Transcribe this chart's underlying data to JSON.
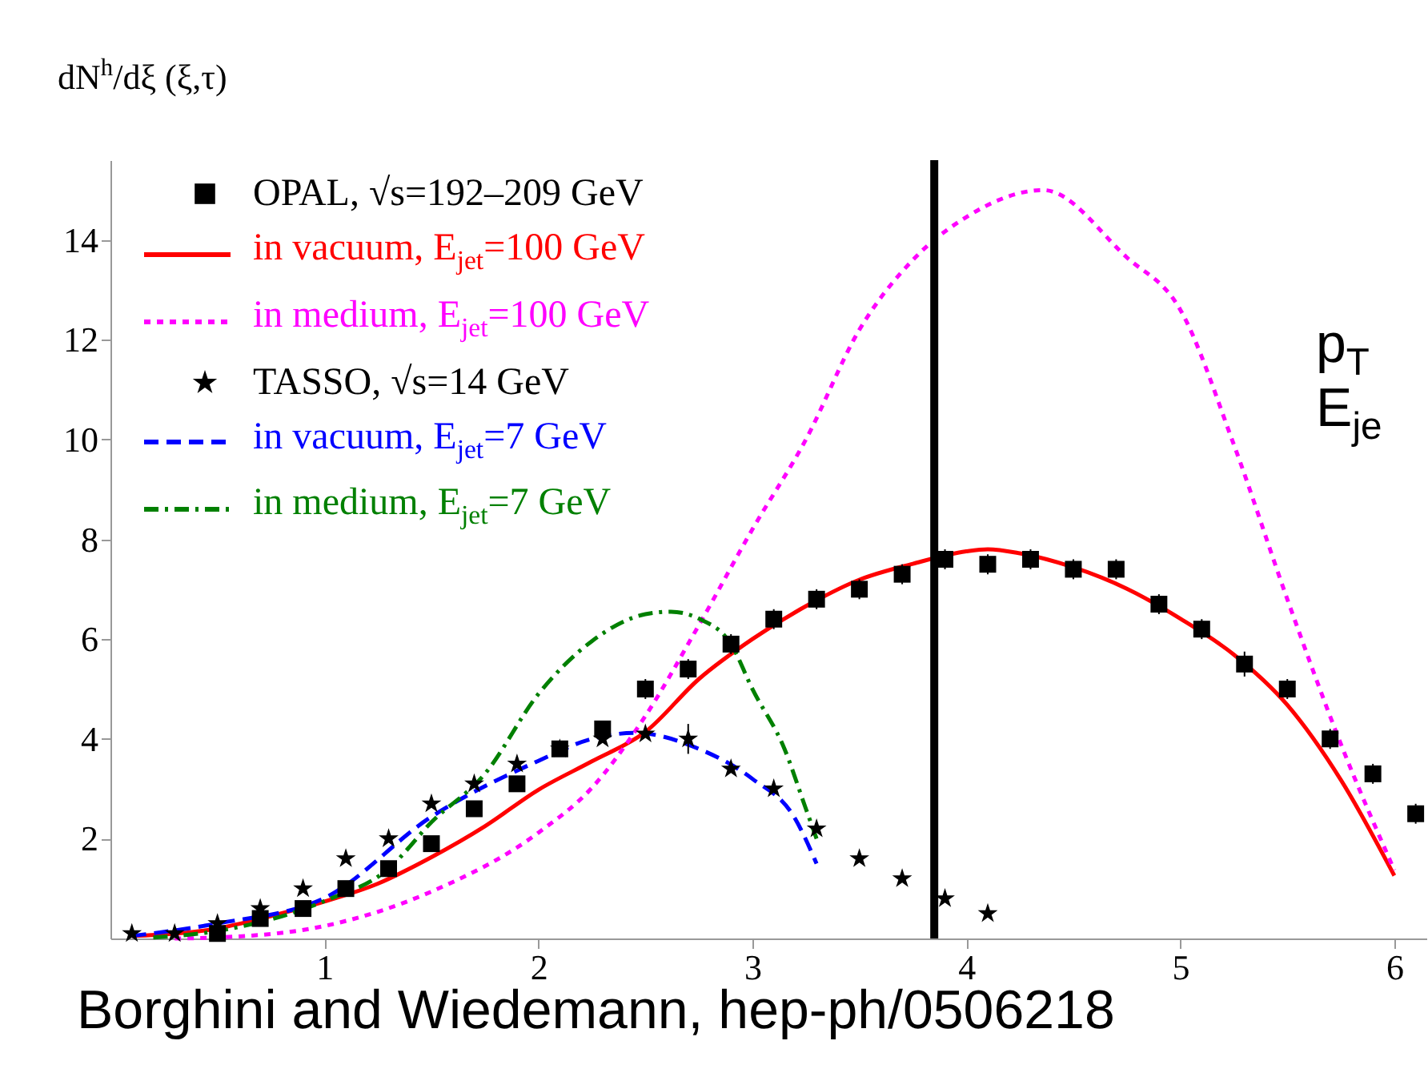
{
  "chart_data": {
    "type": "line",
    "ylabel": "dN$^{h}$/dξ (ξ,τ)",
    "xlim": [
      0,
      6.15
    ],
    "ylim": [
      0,
      15.6
    ],
    "xticks": [
      1,
      2,
      3,
      4,
      5,
      6
    ],
    "yticks": [
      2,
      4,
      6,
      8,
      10,
      12,
      14
    ],
    "grid": false,
    "legend": "top left",
    "ref_lines": [
      {
        "axis": "x",
        "value": 3.85,
        "color": "#000000"
      }
    ],
    "annotations": [
      "p$_{T}$",
      "E$_{je}$",
      "Borghini and Wiedemann, hep-ph/0506218"
    ],
    "series": [
      {
        "type": "scatter",
        "name": "OPAL, √s=192–209 GeV",
        "color": "#000000",
        "marker": "square",
        "x": [
          0.5,
          0.7,
          0.9,
          1.1,
          1.3,
          1.5,
          1.7,
          1.9,
          2.1,
          2.3,
          2.5,
          2.7,
          2.9,
          3.1,
          3.3,
          3.5,
          3.7,
          3.9,
          4.1,
          4.3,
          4.5,
          4.7,
          4.9,
          5.1,
          5.3,
          5.5,
          5.7,
          5.9,
          6.1
        ],
        "values": [
          0.1,
          0.4,
          0.6,
          1.0,
          1.4,
          1.9,
          2.6,
          3.1,
          3.8,
          4.2,
          5.0,
          5.4,
          5.9,
          6.4,
          6.8,
          7.0,
          7.3,
          7.6,
          7.5,
          7.6,
          7.4,
          7.4,
          6.7,
          6.2,
          5.5,
          5.0,
          4.0,
          3.3,
          2.5
        ],
        "errors": [
          null,
          null,
          null,
          null,
          null,
          null,
          null,
          null,
          null,
          null,
          0.2,
          0.2,
          0.2,
          0.2,
          0.2,
          0.2,
          0.2,
          0.2,
          0.2,
          0.2,
          0.2,
          0.2,
          0.2,
          0.2,
          0.25,
          0.2,
          0.2,
          0.2,
          0.2
        ]
      },
      {
        "name": "in vacuum, E$_{jet}$=100 GeV",
        "color": "#ff0000",
        "line_style": "solid",
        "x": [
          0.1,
          0.5,
          0.75,
          1,
          1.25,
          1.5,
          1.75,
          2,
          2.25,
          2.5,
          2.75,
          3,
          3.25,
          3.5,
          3.75,
          4,
          4.1,
          4.25,
          4.5,
          4.75,
          5,
          5.25,
          5.5,
          5.75,
          6
        ],
        "values": [
          0.05,
          0.2,
          0.45,
          0.74,
          1.1,
          1.63,
          2.25,
          2.98,
          3.55,
          4.14,
          5.2,
          6.0,
          6.66,
          7.19,
          7.51,
          7.76,
          7.8,
          7.72,
          7.44,
          7.01,
          6.41,
          5.69,
          4.68,
          3.18,
          1.26
        ]
      },
      {
        "name": "in medium, E$_{jet}$=100 GeV",
        "color": "#ff00ff",
        "line_style": "dotted",
        "x": [
          0.3,
          0.5,
          1,
          1.5,
          2,
          2.25,
          2.5,
          2.75,
          3,
          3.25,
          3.5,
          3.75,
          4,
          4.36,
          4.75,
          5,
          5.25,
          5.5,
          5.75,
          6
        ],
        "values": [
          0,
          0.02,
          0.25,
          0.94,
          2.12,
          3.02,
          4.46,
          6.28,
          8.2,
          10.0,
          12.2,
          13.6,
          14.46,
          15.0,
          13.65,
          12.6,
          9.9,
          6.8,
          3.9,
          1.37
        ]
      },
      {
        "type": "scatter",
        "name": "TASSO, √s=14 GeV",
        "color": "#000000",
        "marker": "star",
        "x": [
          0.1,
          0.3,
          0.5,
          0.7,
          0.9,
          1.1,
          1.3,
          1.5,
          1.7,
          1.9,
          2.1,
          2.3,
          2.5,
          2.7,
          2.9,
          3.1,
          3.3,
          3.5,
          3.7,
          3.9,
          4.1
        ],
        "values": [
          0.1,
          0.1,
          0.3,
          0.6,
          1.0,
          1.6,
          2.0,
          2.7,
          3.1,
          3.5,
          3.8,
          4.0,
          4.1,
          4.0,
          3.4,
          3.0,
          2.2,
          1.6,
          1.2,
          0.8,
          0.5
        ],
        "errors": [
          null,
          null,
          null,
          null,
          null,
          null,
          null,
          null,
          null,
          null,
          null,
          null,
          null,
          0.3,
          null,
          null,
          null,
          null,
          null,
          null,
          null
        ]
      },
      {
        "name": "in vacuum, E$_{jet}$=7 GeV",
        "color": "#0000ff",
        "line_style": "dashed",
        "x": [
          0.1,
          0.5,
          1,
          1.5,
          2,
          2.25,
          2.45,
          2.75,
          3,
          3.2,
          3.3
        ],
        "values": [
          0.05,
          0.3,
          0.81,
          2.44,
          3.56,
          4.0,
          4.12,
          3.8,
          3.2,
          2.4,
          1.5
        ]
      },
      {
        "name": "in medium, E$_{jet}$=7 GeV",
        "color": "#008000",
        "line_style": "dashdot",
        "x": [
          0.2,
          0.5,
          1,
          1.3,
          1.5,
          1.75,
          2,
          2.25,
          2.5,
          2.62,
          2.75,
          2.9,
          3,
          3.15,
          3.25,
          3.3
        ],
        "values": [
          0.02,
          0.15,
          0.75,
          1.4,
          2.33,
          3.3,
          4.9,
          5.96,
          6.5,
          6.55,
          6.41,
          5.9,
          5.0,
          3.8,
          2.6,
          2.0
        ]
      }
    ]
  }
}
